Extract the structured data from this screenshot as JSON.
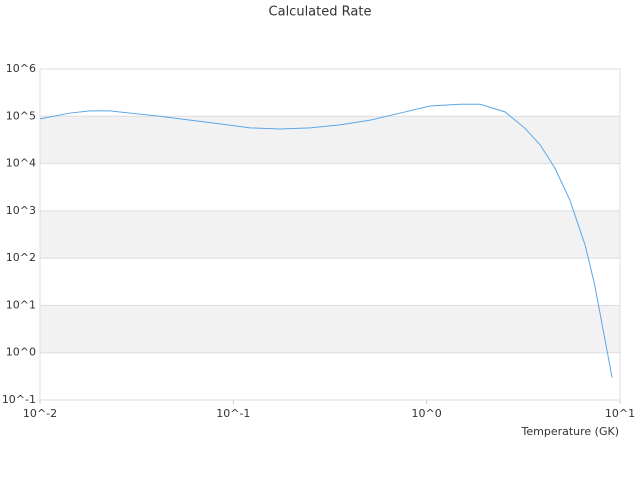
{
  "chart_data": {
    "type": "line",
    "title": "Calculated Rate",
    "x_label": "Temperature (GK)",
    "x": [
      0.01,
      0.0143,
      0.0181,
      0.023,
      0.0292,
      0.0417,
      0.0597,
      0.0853,
      0.122,
      0.174,
      0.249,
      0.357,
      0.511,
      0.73,
      1.04,
      1.49,
      1.89,
      2.54,
      3.22,
      3.86,
      4.6,
      5.5,
      6.6,
      7.4,
      9.1
    ],
    "values": [
      88000,
      117000,
      130000,
      130000,
      117000,
      100000,
      83000,
      69000,
      57000,
      54000,
      57000,
      66000,
      83000,
      117000,
      165000,
      180000,
      180000,
      124000,
      56000,
      25000,
      8100,
      1700,
      190,
      27,
      0.3
    ],
    "color": "#5aa6e8",
    "xscale": "log",
    "yscale": "log",
    "xlim": [
      0.01,
      10
    ],
    "ylim": [
      0.1,
      1000000
    ],
    "xticks": [
      {
        "value": 0.01,
        "label": "10^-2"
      },
      {
        "value": 0.1,
        "label": "10^-1"
      },
      {
        "value": 1,
        "label": "10^0"
      },
      {
        "value": 10,
        "label": "10^1"
      }
    ],
    "yticks": [
      {
        "value": 0.1,
        "label": "10^-1"
      },
      {
        "value": 1,
        "label": "10^0"
      },
      {
        "value": 10,
        "label": "10^1"
      },
      {
        "value": 100,
        "label": "10^2"
      },
      {
        "value": 1000,
        "label": "10^3"
      },
      {
        "value": 10000,
        "label": "10^4"
      },
      {
        "value": 100000,
        "label": "10^5"
      },
      {
        "value": 1000000,
        "label": "10^6"
      }
    ],
    "grid": true
  }
}
